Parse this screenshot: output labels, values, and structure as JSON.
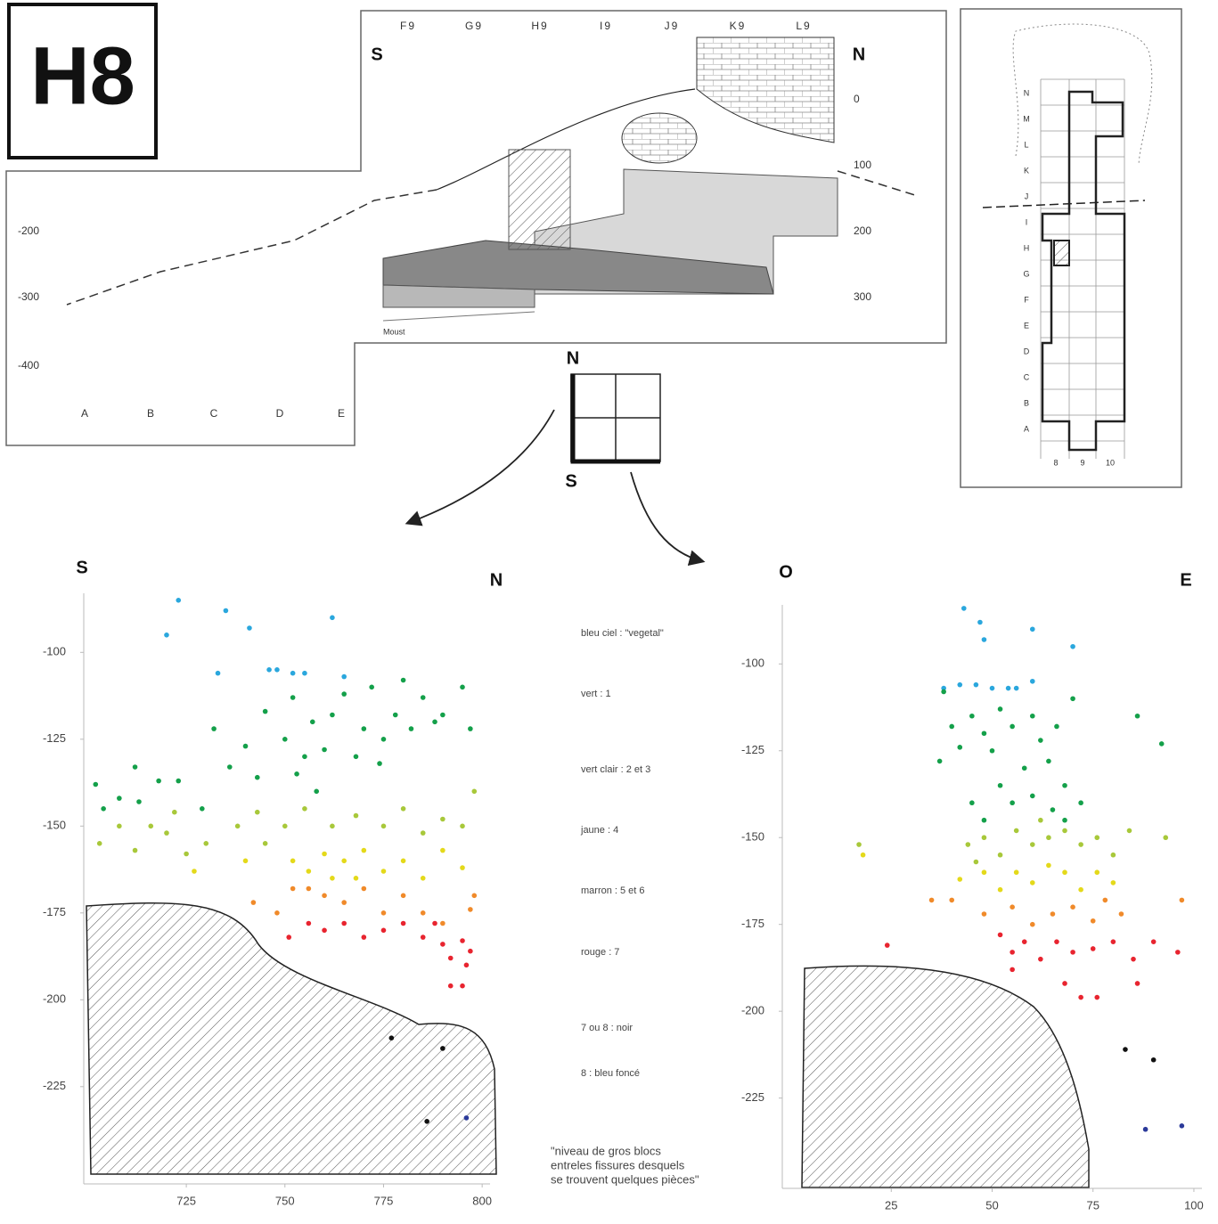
{
  "header": {
    "label": "H8"
  },
  "section": {
    "grid_labels": [
      "F9",
      "G9",
      "H9",
      "I9",
      "J9",
      "K9",
      "L9"
    ],
    "left_dir": "S",
    "right_dir": "N",
    "depths": [
      0,
      100,
      200,
      300
    ],
    "far_depths": [
      -200,
      -300,
      -400
    ],
    "letters": [
      "A",
      "B",
      "C",
      "D",
      "E"
    ],
    "layer_note": "Moust"
  },
  "compass": {
    "north": "N",
    "south": "S"
  },
  "plan": {
    "rows": [
      "N",
      "M",
      "L",
      "K",
      "J",
      "I",
      "H",
      "G",
      "F",
      "E",
      "D",
      "C",
      "B",
      "A"
    ],
    "columns": [
      8,
      9,
      10
    ]
  },
  "legend": [
    "bleu ciel : \"vegetal\"",
    "vert : 1",
    "vert clair : 2 et 3",
    "jaune : 4",
    "marron : 5 et 6",
    "rouge : 7",
    "7 ou 8 : noir",
    "8 : bleu foncé"
  ],
  "note": [
    "\"niveau de gros blocs",
    "entreles fissures desquels",
    "se trouvent quelques pièces\""
  ],
  "chart_data": [
    {
      "type": "scatter",
      "left_label": "S",
      "right_label": "N",
      "xlim": [
        699,
        802
      ],
      "ylim": [
        -253,
        -83
      ],
      "xticks": [
        725,
        750,
        775,
        800
      ],
      "yticks": [
        -100,
        -125,
        -150,
        -175,
        -200,
        -225
      ],
      "series": [
        {
          "color": "#2aa7dd",
          "x": [
            723,
            720,
            735,
            741,
            762,
            733,
            746,
            748,
            752,
            755,
            765
          ],
          "y": [
            -85,
            -95,
            -88,
            -93,
            -90,
            -106,
            -105,
            -105,
            -106,
            -106,
            -107
          ]
        },
        {
          "color": "#14a04a",
          "x": [
            702,
            704,
            708,
            712,
            713,
            718,
            723,
            729,
            732,
            736,
            740,
            743,
            745,
            750,
            752,
            755,
            757,
            758,
            760,
            765,
            768,
            770,
            772,
            775,
            778,
            780,
            782,
            785,
            788,
            790,
            795,
            797,
            753,
            762,
            774
          ],
          "y": [
            -138,
            -145,
            -142,
            -133,
            -143,
            -137,
            -137,
            -145,
            -122,
            -133,
            -127,
            -136,
            -117,
            -125,
            -113,
            -130,
            -120,
            -140,
            -128,
            -112,
            -130,
            -122,
            -110,
            -125,
            -118,
            -108,
            -122,
            -113,
            -120,
            -118,
            -110,
            -122,
            -135,
            -118,
            -132
          ]
        },
        {
          "color": "#a8c83a",
          "x": [
            703,
            708,
            712,
            716,
            720,
            725,
            730,
            738,
            743,
            750,
            755,
            762,
            768,
            775,
            780,
            785,
            790,
            795,
            798,
            722,
            745
          ],
          "y": [
            -155,
            -150,
            -157,
            -150,
            -152,
            -158,
            -155,
            -150,
            -146,
            -150,
            -145,
            -150,
            -147,
            -150,
            -145,
            -152,
            -148,
            -150,
            -140,
            -146,
            -155
          ]
        },
        {
          "color": "#e4d91a",
          "x": [
            727,
            740,
            752,
            756,
            760,
            765,
            770,
            775,
            780,
            785,
            790,
            795,
            768,
            762
          ],
          "y": [
            -163,
            -160,
            -160,
            -163,
            -158,
            -160,
            -157,
            -163,
            -160,
            -165,
            -157,
            -162,
            -165,
            -165
          ]
        },
        {
          "color": "#f08a2a",
          "x": [
            742,
            748,
            752,
            756,
            760,
            765,
            770,
            775,
            780,
            785,
            790,
            797,
            798
          ],
          "y": [
            -172,
            -175,
            -168,
            -168,
            -170,
            -172,
            -168,
            -175,
            -170,
            -175,
            -178,
            -174,
            -170
          ]
        },
        {
          "color": "#e8242f",
          "x": [
            751,
            756,
            760,
            765,
            770,
            775,
            780,
            785,
            788,
            790,
            792,
            795,
            796,
            797,
            795,
            792
          ],
          "y": [
            -182,
            -178,
            -180,
            -178,
            -182,
            -180,
            -178,
            -182,
            -178,
            -184,
            -188,
            -183,
            -190,
            -186,
            -196,
            -196
          ]
        },
        {
          "color": "#111111",
          "x": [
            777,
            790,
            786
          ],
          "y": [
            -211,
            -214,
            -235
          ]
        },
        {
          "color": "#2b3a9a",
          "x": [
            796
          ],
          "y": [
            -234
          ]
        }
      ]
    },
    {
      "type": "scatter",
      "left_label": "O",
      "right_label": "E",
      "xlim": [
        -2,
        102
      ],
      "ylim": [
        -251,
        -83
      ],
      "xticks": [
        25,
        50,
        75,
        100
      ],
      "yticks": [
        -100,
        -125,
        -150,
        -175,
        -200,
        -225
      ],
      "series": [
        {
          "color": "#2aa7dd",
          "x": [
            43,
            47,
            48,
            60,
            70,
            38,
            42,
            46,
            50,
            54,
            56,
            60
          ],
          "y": [
            -84,
            -88,
            -93,
            -90,
            -95,
            -107,
            -106,
            -106,
            -107,
            -107,
            -107,
            -105
          ]
        },
        {
          "color": "#14a04a",
          "x": [
            38,
            40,
            42,
            45,
            48,
            50,
            52,
            55,
            58,
            60,
            62,
            64,
            66,
            68,
            70,
            72,
            45,
            48,
            55,
            60,
            65,
            68,
            86,
            92,
            37,
            52
          ],
          "y": [
            -108,
            -118,
            -124,
            -115,
            -120,
            -125,
            -113,
            -118,
            -130,
            -115,
            -122,
            -128,
            -118,
            -135,
            -110,
            -140,
            -140,
            -145,
            -140,
            -138,
            -142,
            -145,
            -115,
            -123,
            -128,
            -135
          ]
        },
        {
          "color": "#a8c83a",
          "x": [
            44,
            48,
            52,
            56,
            60,
            64,
            68,
            72,
            76,
            80,
            84,
            93,
            17,
            46,
            62
          ],
          "y": [
            -152,
            -150,
            -155,
            -148,
            -152,
            -150,
            -148,
            -152,
            -150,
            -155,
            -148,
            -150,
            -152,
            -157,
            -145
          ]
        },
        {
          "color": "#e4d91a",
          "x": [
            42,
            48,
            52,
            56,
            60,
            64,
            68,
            72,
            76,
            80,
            18
          ],
          "y": [
            -162,
            -160,
            -165,
            -160,
            -163,
            -158,
            -160,
            -165,
            -160,
            -163,
            -155
          ]
        },
        {
          "color": "#f08a2a",
          "x": [
            35,
            40,
            48,
            55,
            60,
            65,
            70,
            75,
            78,
            82,
            97
          ],
          "y": [
            -168,
            -168,
            -172,
            -170,
            -175,
            -172,
            -170,
            -174,
            -168,
            -172,
            -168
          ]
        },
        {
          "color": "#e8242f",
          "x": [
            24,
            52,
            55,
            58,
            62,
            66,
            70,
            75,
            80,
            85,
            90,
            96,
            68,
            72,
            76,
            86,
            55
          ],
          "y": [
            -181,
            -178,
            -183,
            -180,
            -185,
            -180,
            -183,
            -182,
            -180,
            -185,
            -180,
            -183,
            -192,
            -196,
            -196,
            -192,
            -188
          ]
        },
        {
          "color": "#111111",
          "x": [
            83,
            90
          ],
          "y": [
            -211,
            -214
          ]
        },
        {
          "color": "#2b3a9a",
          "x": [
            88,
            97
          ],
          "y": [
            -234,
            -233
          ]
        }
      ]
    }
  ]
}
